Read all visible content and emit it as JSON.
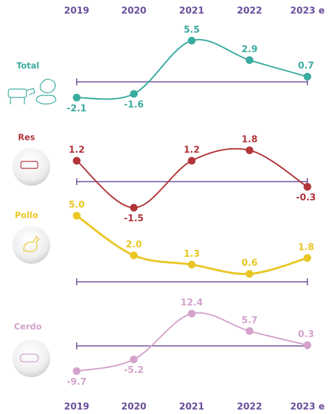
{
  "chart_data": [
    {
      "type": "line",
      "categories": [
        "2019",
        "2020",
        "2021",
        "2022",
        "2023 e"
      ],
      "series": [
        {
          "name": "Total",
          "color": "#3aab9f",
          "values": [
            -2.1,
            -1.6,
            5.5,
            2.9,
            0.7
          ],
          "value_labels": [
            "-2.1",
            "-1.6",
            "5.5",
            "2.9",
            "0.7"
          ]
        }
      ],
      "ylim": [
        -3,
        6
      ]
    },
    {
      "type": "line",
      "series": [
        {
          "name": "Res",
          "color": "#b2353b",
          "values": [
            1.2,
            -1.5,
            1.2,
            1.8,
            -0.3
          ],
          "value_labels": [
            "1.2",
            "-1.5",
            "1.2",
            "1.8",
            "-0.3"
          ]
        }
      ],
      "ylim": [
        -2,
        2.5
      ]
    },
    {
      "type": "line",
      "series": [
        {
          "name": "Pollo",
          "color": "#e9c623",
          "values": [
            5.0,
            2.0,
            1.3,
            0.6,
            1.8
          ],
          "value_labels": [
            "5.0",
            "2.0",
            "1.3",
            "0.6",
            "1.8"
          ]
        }
      ],
      "ylim": [
        -1,
        6
      ]
    },
    {
      "type": "line",
      "categories": [
        "2019",
        "2020",
        "2021",
        "2022",
        "2023 e"
      ],
      "series": [
        {
          "name": "Cerdo",
          "color": "#d3a3cc",
          "values": [
            -9.7,
            -5.2,
            12.4,
            5.7,
            0.3
          ],
          "value_labels": [
            "-9.7",
            "-5.2",
            "12.4",
            "5.7",
            "0.3"
          ]
        }
      ],
      "ylim": [
        -12,
        15
      ]
    }
  ]
}
